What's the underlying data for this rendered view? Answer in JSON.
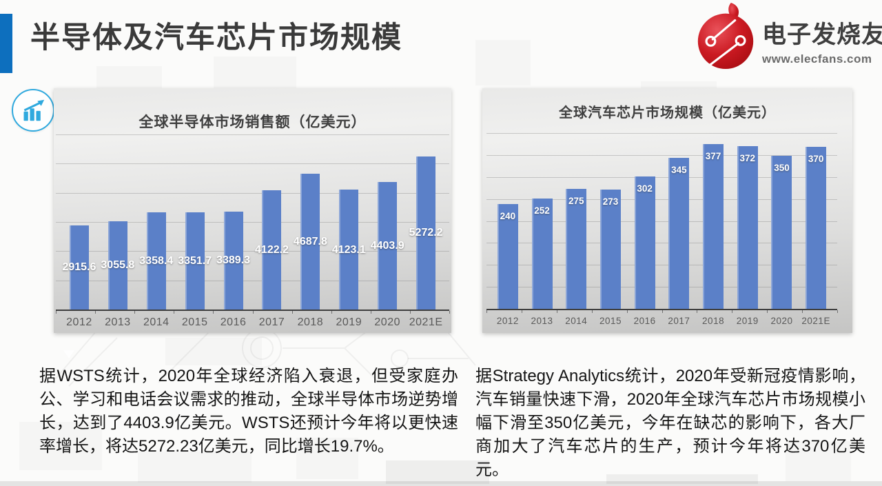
{
  "slide": {
    "title": "半导体及汽车芯片市场规模",
    "accent_color": "#0d6fbe"
  },
  "logo": {
    "brand": "电子发烧友",
    "url": "www.elecfans.com",
    "brand_color": "#c8151c"
  },
  "chart_data": [
    {
      "type": "bar",
      "title": "全球半导体市场销售额（亿美元）",
      "categories": [
        "2012",
        "2013",
        "2014",
        "2015",
        "2016",
        "2017",
        "2018",
        "2019",
        "2020",
        "2021E"
      ],
      "values": [
        2915.6,
        3055.8,
        3358.4,
        3351.7,
        3389.3,
        4122.2,
        4687.8,
        4123.1,
        4403.9,
        5272.2
      ],
      "xlabel": "",
      "ylabel": "",
      "ylim": [
        0,
        6000
      ],
      "gridline_step": 1000,
      "grid": true,
      "legend": false,
      "bar_color": "#5b80c8",
      "label_color": "#ffffff",
      "label_position": "center"
    },
    {
      "type": "bar",
      "title": "全球汽车芯片市场规模（亿美元）",
      "categories": [
        "2012",
        "2013",
        "2014",
        "2015",
        "2016",
        "2017",
        "2018",
        "2019",
        "2020",
        "2021E"
      ],
      "values": [
        240,
        252,
        275,
        273,
        302,
        345,
        377,
        372,
        350,
        370
      ],
      "xlabel": "",
      "ylabel": "",
      "ylim": [
        0,
        400
      ],
      "gridline_step": 50,
      "grid": true,
      "legend": false,
      "bar_color": "#5b80c8",
      "label_color": "#ffffff",
      "label_position": "inside-end"
    }
  ],
  "notes": {
    "left": "据WSTS统计，2020年全球经济陷入衰退，但受家庭办公、学习和电话会议需求的推动，全球半导体市场逆势增长，达到了4403.9亿美元。WSTS还预计今年将以更快速率增长，将达5272.23亿美元，同比增长19.7%。",
    "right": "据Strategy Analytics统计，2020年受新冠疫情影响，汽车销量快速下滑，2020年全球汽车芯片市场规模小幅下滑至350亿美元，今年在缺芯的影响下，各大厂商加大了汽车芯片的生产，预计今年将达370亿美元。"
  }
}
